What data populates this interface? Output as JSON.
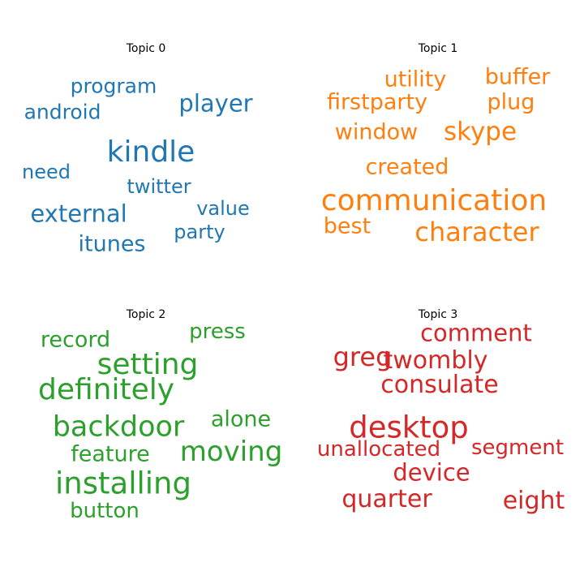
{
  "chart_data": [
    {
      "type": "wordcloud",
      "title": "Topic 0",
      "color": "#1f77b4",
      "words": [
        {
          "text": "kindle",
          "weight": 1.0
        },
        {
          "text": "player",
          "weight": 0.75
        },
        {
          "text": "external",
          "weight": 0.74
        },
        {
          "text": "itunes",
          "weight": 0.72
        },
        {
          "text": "program",
          "weight": 0.64
        },
        {
          "text": "android",
          "weight": 0.63
        },
        {
          "text": "twitter",
          "weight": 0.6
        },
        {
          "text": "value",
          "weight": 0.6
        },
        {
          "text": "party",
          "weight": 0.6
        },
        {
          "text": "need",
          "weight": 0.58
        }
      ]
    },
    {
      "type": "wordcloud",
      "title": "Topic 1",
      "color": "#ff7f0e",
      "words": [
        {
          "text": "communication",
          "weight": 1.0
        },
        {
          "text": "character",
          "weight": 0.9
        },
        {
          "text": "skype",
          "weight": 0.88
        },
        {
          "text": "firstparty",
          "weight": 0.76
        },
        {
          "text": "utility",
          "weight": 0.76
        },
        {
          "text": "buffer",
          "weight": 0.76
        },
        {
          "text": "plug",
          "weight": 0.76
        },
        {
          "text": "window",
          "weight": 0.76
        },
        {
          "text": "created",
          "weight": 0.76
        },
        {
          "text": "best",
          "weight": 0.76
        }
      ]
    },
    {
      "type": "wordcloud",
      "title": "Topic 2",
      "color": "#2ca02c",
      "words": [
        {
          "text": "installing",
          "weight": 1.0
        },
        {
          "text": "definitely",
          "weight": 0.97
        },
        {
          "text": "setting",
          "weight": 0.95
        },
        {
          "text": "backdoor",
          "weight": 0.95
        },
        {
          "text": "moving",
          "weight": 0.93
        },
        {
          "text": "feature",
          "weight": 0.74
        },
        {
          "text": "record",
          "weight": 0.74
        },
        {
          "text": "alone",
          "weight": 0.74
        },
        {
          "text": "button",
          "weight": 0.72
        },
        {
          "text": "press",
          "weight": 0.72
        }
      ]
    },
    {
      "type": "wordcloud",
      "title": "Topic 3",
      "color": "#d62728",
      "words": [
        {
          "text": "desktop",
          "weight": 1.0
        },
        {
          "text": "greg",
          "weight": 0.9
        },
        {
          "text": "consulate",
          "weight": 0.86
        },
        {
          "text": "twombly",
          "weight": 0.86
        },
        {
          "text": "quarter",
          "weight": 0.86
        },
        {
          "text": "eight",
          "weight": 0.86
        },
        {
          "text": "device",
          "weight": 0.81
        },
        {
          "text": "comment",
          "weight": 0.81
        },
        {
          "text": "unallocated",
          "weight": 0.74
        },
        {
          "text": "segment",
          "weight": 0.74
        }
      ]
    }
  ]
}
